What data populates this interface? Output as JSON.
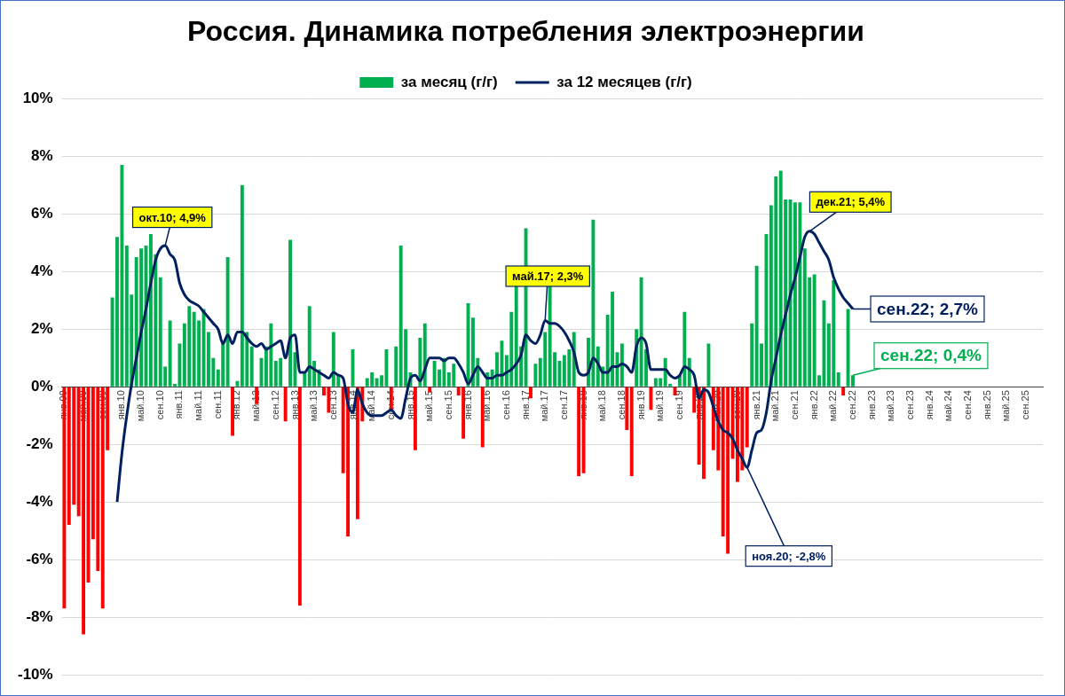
{
  "chart_data": {
    "type": "bar",
    "title": "Россия. Динамика потребления электроэнергии",
    "categories": [
      "янв.09",
      null,
      null,
      null,
      "май.09",
      null,
      null,
      null,
      "сен.09",
      null,
      null,
      null,
      "янв.10",
      null,
      null,
      null,
      "май.10",
      null,
      null,
      null,
      "сен.10",
      null,
      null,
      null,
      "янв.11",
      null,
      null,
      null,
      "май.11",
      null,
      null,
      null,
      "сен.11",
      null,
      null,
      null,
      "янв.12",
      null,
      null,
      null,
      "май.12",
      null,
      null,
      null,
      "сен.12",
      null,
      null,
      null,
      "янв.13",
      null,
      null,
      null,
      "май.13",
      null,
      null,
      null,
      "сен.13",
      null,
      null,
      null,
      "янв.14",
      null,
      null,
      null,
      "май.14",
      null,
      null,
      null,
      "сен.14",
      null,
      null,
      null,
      "янв.15",
      null,
      null,
      null,
      "май.15",
      null,
      null,
      null,
      "сен.15",
      null,
      null,
      null,
      "янв.16",
      null,
      null,
      null,
      "май.16",
      null,
      null,
      null,
      "сен.16",
      null,
      null,
      null,
      "янв.17",
      null,
      null,
      null,
      "май.17",
      null,
      null,
      null,
      "сен.17",
      null,
      null,
      null,
      "янв.18",
      null,
      null,
      null,
      "май.18",
      null,
      null,
      null,
      "сен.18",
      null,
      null,
      null,
      "янв.19",
      null,
      null,
      null,
      "май.19",
      null,
      null,
      null,
      "сен.19",
      null,
      null,
      null,
      "янв.20",
      null,
      null,
      null,
      "май.20",
      null,
      null,
      null,
      "сен.20",
      null,
      null,
      null,
      "янв.21",
      null,
      null,
      null,
      "май.21",
      null,
      null,
      null,
      "сен.21",
      null,
      null,
      null,
      "янв.22",
      null,
      null,
      null,
      "май.22",
      null,
      null,
      null,
      "сен.22",
      null,
      null,
      null,
      "янв.23",
      null,
      null,
      null,
      "май.23",
      null,
      null,
      null,
      "сен.23",
      null,
      null,
      null,
      "янв.24",
      null,
      null,
      null,
      "май.24",
      null,
      null,
      null,
      "сен.24",
      null,
      null,
      null,
      "янв.25",
      null,
      null,
      null,
      "май.25",
      null,
      null,
      null,
      "сен.25",
      null,
      null,
      null
    ],
    "series": [
      {
        "name": "за месяц (г/г)",
        "type": "bar",
        "color": "#00b050",
        "values": [
          -7.7,
          -4.8,
          -4.1,
          -4.5,
          -8.6,
          -6.8,
          -5.3,
          -6.4,
          -7.7,
          -2.2,
          3.1,
          5.2,
          7.7,
          4.9,
          3.2,
          4.5,
          4.8,
          4.9,
          5.3,
          4.6,
          3.8,
          0.7,
          2.3,
          0.1,
          1.5,
          2.2,
          2.8,
          2.6,
          2.3,
          2.7,
          1.9,
          1.0,
          0.6,
          1.6,
          4.5,
          -1.7,
          0.2,
          7.0,
          1.9,
          1.4,
          -0.6,
          1.0,
          1.4,
          2.2,
          0.9,
          1.0,
          -1.2,
          5.1,
          1.2,
          -7.6,
          0.5,
          2.8,
          0.9,
          0.6,
          -0.3,
          -0.9,
          1.9,
          0.4,
          -3.0,
          -5.2,
          1.3,
          -4.6,
          -1.2,
          0.3,
          0.5,
          0.3,
          0.4,
          1.3,
          -0.8,
          1.4,
          4.9,
          2.0,
          0.5,
          -2.2,
          1.7,
          2.2,
          -0.2,
          0.9,
          0.6,
          1.0,
          0.5,
          0.8,
          -0.3,
          -1.8,
          2.9,
          2.4,
          1.0,
          -2.1,
          0.5,
          0.6,
          1.2,
          1.6,
          1.1,
          2.6,
          3.8,
          1.4,
          5.5,
          -0.4,
          0.8,
          1.0,
          1.9,
          3.5,
          1.2,
          0.9,
          1.1,
          1.3,
          1.9,
          -3.1,
          -3.0,
          1.7,
          5.8,
          1.4,
          0.7,
          2.5,
          3.3,
          1.2,
          1.5,
          -1.5,
          -3.1,
          2.0,
          3.8,
          1.3,
          -0.8,
          0.3,
          0.3,
          1.0,
          0.1,
          -0.3,
          0.4,
          2.6,
          1.0,
          -0.9,
          -2.7,
          -3.2,
          1.5,
          -2.2,
          -2.9,
          -5.2,
          -5.8,
          -2.5,
          -3.3,
          -2.9,
          -2.1,
          2.2,
          4.2,
          1.5,
          5.3,
          6.3,
          7.3,
          7.5,
          6.5,
          6.5,
          6.4,
          6.4,
          4.8,
          3.8,
          3.9,
          0.4,
          3.0,
          2.2,
          3.7,
          0.5,
          -0.3,
          2.7,
          0.4,
          null,
          null,
          null,
          null,
          null,
          null,
          null,
          null,
          null,
          null,
          null,
          null,
          null,
          null,
          null,
          null,
          null,
          null,
          null,
          null,
          null,
          null,
          null,
          null,
          null,
          null,
          null,
          null,
          null,
          null,
          null,
          null,
          null,
          null,
          null,
          null,
          null,
          null,
          null
        ],
        "colors": [
          "#ff0000",
          "#ff0000",
          "#ff0000",
          "#ff0000",
          "#ff0000",
          "#ff0000",
          "#ff0000",
          "#ff0000",
          "#ff0000",
          "#ff0000",
          "#00b050",
          "#00b050",
          "#00b050",
          "#00b050",
          "#00b050",
          "#00b050",
          "#00b050",
          "#00b050",
          "#00b050",
          "#00b050",
          "#00b050",
          "#00b050",
          "#00b050",
          "#00b050",
          "#00b050",
          "#00b050",
          "#00b050",
          "#00b050",
          "#00b050",
          "#00b050",
          "#00b050",
          "#00b050",
          "#00b050",
          "#00b050",
          "#00b050",
          "#ff0000",
          "#00b050",
          "#00b050",
          "#00b050",
          "#00b050",
          "#ff0000",
          "#00b050",
          "#00b050",
          "#00b050",
          "#00b050",
          "#00b050",
          "#ff0000",
          "#00b050",
          "#00b050",
          "#ff0000",
          "#00b050",
          "#00b050",
          "#00b050",
          "#00b050",
          "#ff0000",
          "#ff0000",
          "#00b050",
          "#00b050",
          "#ff0000",
          "#ff0000",
          "#00b050",
          "#ff0000",
          "#ff0000",
          "#00b050",
          "#00b050",
          "#00b050",
          "#00b050",
          "#00b050",
          "#ff0000",
          "#00b050",
          "#00b050",
          "#00b050",
          "#00b050",
          "#ff0000",
          "#00b050",
          "#00b050",
          "#ff0000",
          "#00b050",
          "#00b050",
          "#00b050",
          "#00b050",
          "#00b050",
          "#ff0000",
          "#ff0000",
          "#00b050",
          "#00b050",
          "#00b050",
          "#ff0000",
          "#00b050",
          "#00b050",
          "#00b050",
          "#00b050",
          "#00b050",
          "#00b050",
          "#00b050",
          "#00b050",
          "#00b050",
          "#ff0000",
          "#00b050",
          "#00b050",
          "#00b050",
          "#00b050",
          "#00b050",
          "#00b050",
          "#00b050",
          "#00b050",
          "#00b050",
          "#ff0000",
          "#ff0000",
          "#00b050",
          "#00b050",
          "#00b050",
          "#00b050",
          "#00b050",
          "#00b050",
          "#00b050",
          "#00b050",
          "#ff0000",
          "#ff0000",
          "#00b050",
          "#00b050",
          "#00b050",
          "#ff0000",
          "#00b050",
          "#00b050",
          "#00b050",
          "#00b050",
          "#ff0000",
          "#00b050",
          "#00b050",
          "#00b050",
          "#ff0000",
          "#ff0000",
          "#ff0000",
          "#00b050",
          "#ff0000",
          "#ff0000",
          "#ff0000",
          "#ff0000",
          "#ff0000",
          "#ff0000",
          "#ff0000",
          "#ff0000",
          "#00b050",
          "#00b050",
          "#00b050",
          "#00b050",
          "#00b050",
          "#00b050",
          "#00b050",
          "#00b050",
          "#00b050",
          "#00b050",
          "#00b050",
          "#00b050",
          "#00b050",
          "#00b050",
          "#00b050",
          "#00b050",
          "#00b050",
          "#00b050",
          "#00b050",
          "#ff0000",
          "#00b050",
          "#00b050",
          null,
          null,
          null,
          null,
          null,
          null,
          null,
          null,
          null,
          null,
          null,
          null,
          null,
          null,
          null,
          null,
          null,
          null,
          null,
          null,
          null,
          null,
          null,
          null,
          null,
          null,
          null,
          null,
          null,
          null,
          null,
          null,
          null,
          null,
          null,
          null,
          null,
          null,
          null
        ]
      },
      {
        "name": "за 12 месяцев (г/г)",
        "type": "line",
        "color": "#002060",
        "values": [
          null,
          null,
          null,
          null,
          null,
          null,
          null,
          null,
          null,
          null,
          null,
          -4.0,
          -2.3,
          -1.0,
          0.1,
          1.0,
          1.9,
          2.7,
          3.6,
          4.4,
          4.8,
          4.9,
          4.6,
          4.4,
          3.6,
          3.2,
          3.0,
          2.9,
          2.8,
          2.6,
          2.4,
          2.2,
          2.0,
          1.5,
          1.8,
          1.5,
          1.9,
          1.9,
          1.7,
          1.5,
          1.4,
          1.5,
          1.3,
          1.4,
          1.5,
          1.6,
          1.0,
          1.7,
          1.8,
          0.5,
          0.5,
          0.7,
          0.6,
          0.5,
          0.4,
          0.3,
          0.5,
          0.4,
          0.3,
          -0.6,
          -0.9,
          -0.1,
          -0.6,
          -0.9,
          -1.0,
          -1.0,
          -1.0,
          -0.9,
          -0.8,
          -1.0,
          -1.1,
          -0.4,
          0.3,
          0.4,
          0.2,
          0.6,
          1.0,
          1.0,
          1.0,
          0.9,
          1.0,
          1.0,
          0.8,
          0.5,
          0.1,
          0.4,
          0.7,
          0.5,
          0.3,
          0.3,
          0.4,
          0.4,
          0.5,
          0.6,
          0.8,
          1.1,
          1.8,
          1.6,
          1.5,
          1.8,
          2.3,
          2.2,
          2.2,
          2.1,
          1.9,
          1.6,
          1.2,
          0.5,
          0.4,
          0.5,
          1.0,
          0.8,
          0.5,
          0.5,
          0.7,
          0.7,
          0.8,
          0.7,
          0.5,
          1.4,
          1.7,
          1.5,
          0.6,
          0.6,
          0.6,
          0.6,
          0.4,
          0.3,
          0.4,
          0.7,
          0.6,
          0.4,
          -0.4,
          -0.1,
          -0.2,
          -0.7,
          -1.2,
          -1.5,
          -1.6,
          -1.8,
          -2.2,
          -2.5,
          -2.8,
          -2.2,
          -1.6,
          -1.5,
          -0.9,
          0.2,
          1.0,
          1.8,
          2.5,
          3.2,
          3.8,
          4.5,
          5.2,
          5.4,
          5.3,
          5.0,
          4.7,
          4.4,
          3.8,
          3.4,
          3.1,
          2.9,
          2.7,
          null,
          null,
          null,
          null,
          null,
          null,
          null,
          null,
          null,
          null,
          null,
          null,
          null,
          null,
          null,
          null,
          null,
          null,
          null,
          null,
          null,
          null,
          null,
          null,
          null,
          null,
          null,
          null,
          null,
          null,
          null,
          null,
          null,
          null,
          null,
          null,
          null,
          null,
          null
        ]
      }
    ],
    "ylim": [
      -10,
      10
    ],
    "yticks": [
      {
        "value": -10,
        "label": "-10%"
      },
      {
        "value": -8,
        "label": "-8%"
      },
      {
        "value": -6,
        "label": "-6%"
      },
      {
        "value": -4,
        "label": "-4%"
      },
      {
        "value": -2,
        "label": "-2%"
      },
      {
        "value": 0,
        "label": "0%"
      },
      {
        "value": 2,
        "label": "2%"
      },
      {
        "value": 4,
        "label": "4%"
      },
      {
        "value": 6,
        "label": "6%"
      },
      {
        "value": 8,
        "label": "8%"
      },
      {
        "value": 10,
        "label": "10%"
      }
    ],
    "grid": true,
    "legend": "top",
    "annotations": [
      {
        "text": "окт.10; 4,9%",
        "series": "за 12 месяцев (г/г)",
        "x": 21,
        "y": 4.9,
        "color": "#ffff00"
      },
      {
        "text": "май.17; 2,3%",
        "series": "за 12 месяцев (г/г)",
        "x": 100,
        "y": 2.3,
        "color": "#ffff00"
      },
      {
        "text": "дек.21; 5,4%",
        "series": "за 12 месяцев (г/г)",
        "x": 155,
        "y": 5.4,
        "color": "#ffff00"
      },
      {
        "text": "ноя.20; -2,8%",
        "series": "за 12 месяцев (г/г)",
        "x": 142,
        "y": -2.8,
        "color": "#ffffff"
      },
      {
        "text": "сен.22; 2,7%",
        "series": "за 12 месяцев (г/г)",
        "x": 164,
        "y": 2.7,
        "color": "#ffffff"
      },
      {
        "text": "сен.22; 0,4%",
        "series": "за месяц (г/г)",
        "x": 164,
        "y": 0.4,
        "color": "#ffffff"
      }
    ]
  }
}
